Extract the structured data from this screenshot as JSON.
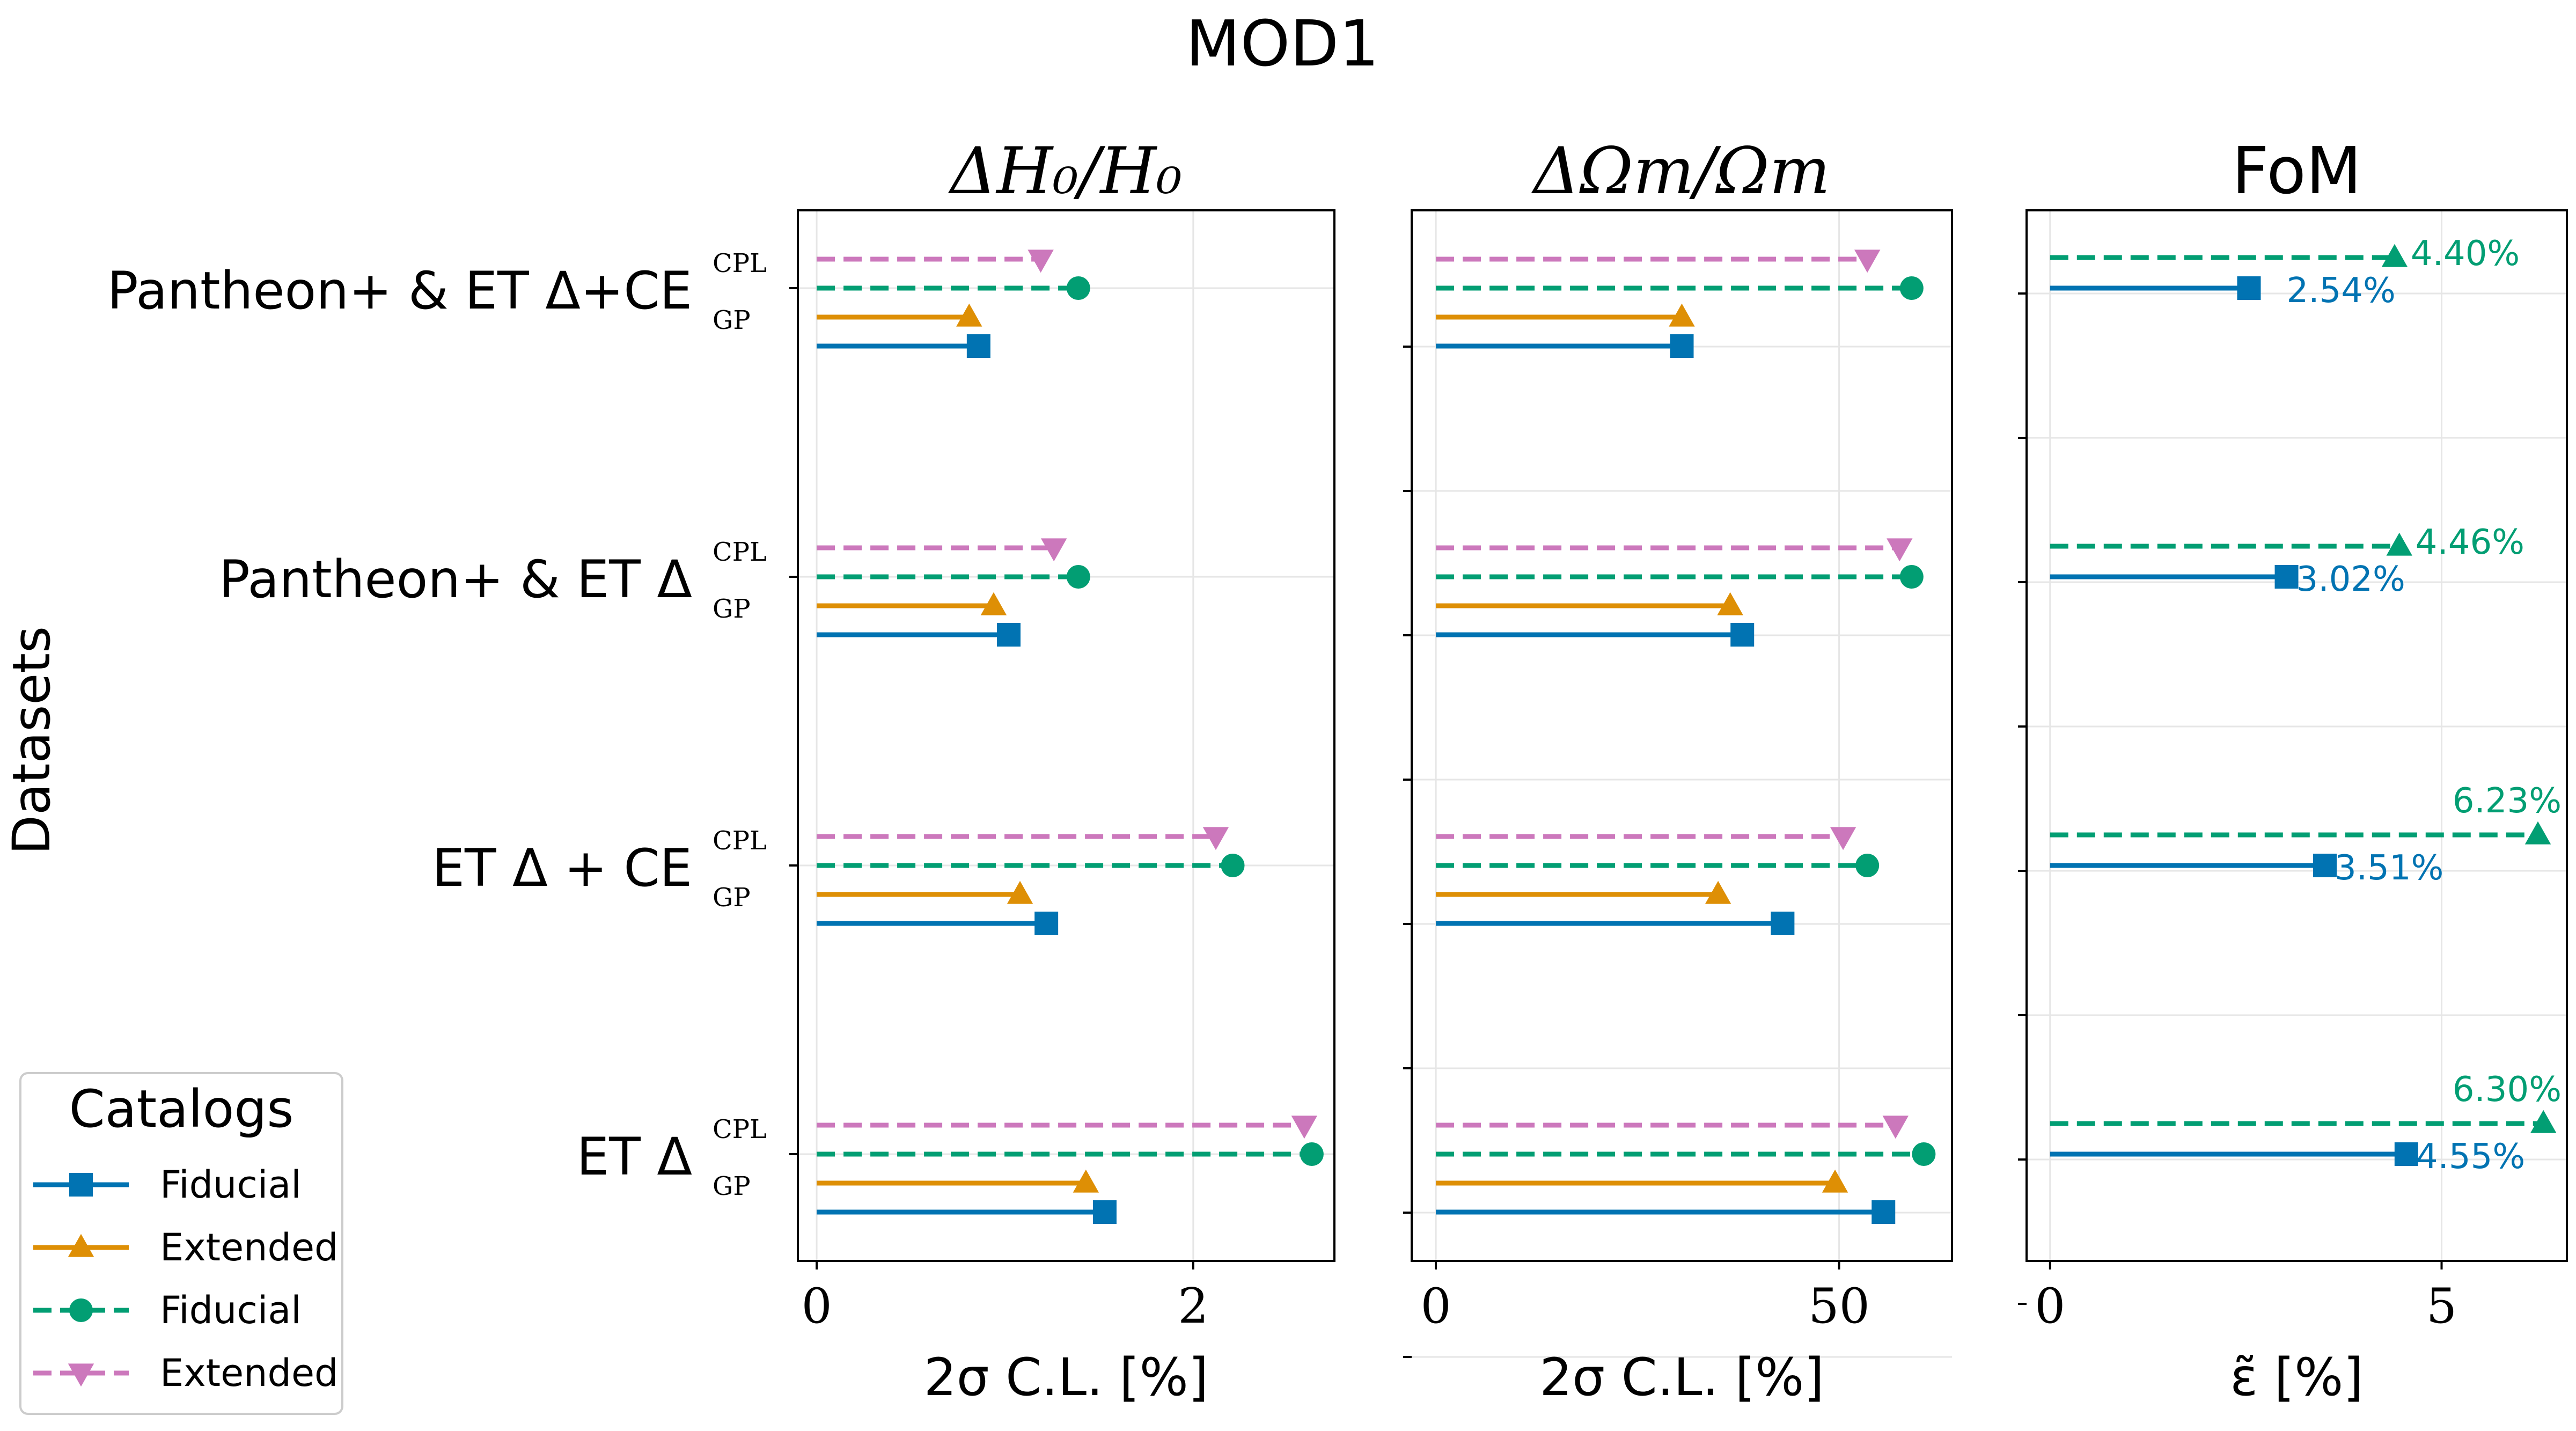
{
  "figure": {
    "suptitle": "MOD1",
    "ylabel": "Datasets",
    "legend_title": "Catalogs",
    "legend_placement": "bottom-left"
  },
  "chart_data": [
    {
      "type": "bar",
      "title": "ΔH₀/H₀",
      "xlabel": "2σ C.L. [%]",
      "xlim": [
        -0.1,
        2.75
      ],
      "xticks": [
        0,
        2
      ],
      "grid": true,
      "categories": [
        "Pantheon+ & ET Δ+CE",
        "Pantheon+ & ET Δ",
        "ET Δ + CE",
        "ET Δ"
      ],
      "category_sublabels": [
        "CPL",
        "GP"
      ],
      "series": [
        {
          "name": "Fiducial",
          "group": "GP",
          "color": "#0173b2",
          "style": "solid",
          "marker": "square",
          "values": [
            0.86,
            1.02,
            1.22,
            1.53
          ]
        },
        {
          "name": "Extended",
          "group": "GP",
          "color": "#de8f05",
          "style": "solid",
          "marker": "triangle-up",
          "values": [
            0.81,
            0.94,
            1.08,
            1.43
          ]
        },
        {
          "name": "Fiducial",
          "group": "CPL",
          "color": "#029e73",
          "style": "dashed",
          "marker": "circle",
          "values": [
            1.39,
            1.39,
            2.21,
            2.63
          ]
        },
        {
          "name": "Extended",
          "group": "CPL",
          "color": "#cc78bc",
          "style": "dashed",
          "marker": "triangle-down",
          "values": [
            1.19,
            1.26,
            2.12,
            2.59
          ]
        }
      ]
    },
    {
      "type": "bar",
      "title": "ΔΩm/Ωm",
      "xlabel": "2σ C.L. [%]",
      "xlim": [
        -3,
        64
      ],
      "xticks": [
        0,
        50
      ],
      "grid": true,
      "series": [
        {
          "name": "Fiducial",
          "group": "GP",
          "color": "#0173b2",
          "style": "solid",
          "marker": "square",
          "values": [
            30.5,
            38,
            43,
            55.5
          ]
        },
        {
          "name": "Extended",
          "group": "GP",
          "color": "#de8f05",
          "style": "solid",
          "marker": "triangle-up",
          "values": [
            30.5,
            36.5,
            35,
            49.5
          ]
        },
        {
          "name": "Fiducial",
          "group": "CPL",
          "color": "#029e73",
          "style": "dashed",
          "marker": "circle",
          "values": [
            59,
            59,
            53.5,
            60.5
          ]
        },
        {
          "name": "Extended",
          "group": "CPL",
          "color": "#cc78bc",
          "style": "dashed",
          "marker": "triangle-down",
          "values": [
            53.5,
            57.5,
            50.5,
            57
          ]
        }
      ]
    },
    {
      "type": "bar",
      "title": "FoM",
      "xlabel": "ε̃ [%]",
      "xlim": [
        -0.3,
        6.6
      ],
      "xticks": [
        0,
        5
      ],
      "grid": true,
      "series": [
        {
          "name": "Fiducial",
          "color": "#0173b2",
          "style": "solid",
          "marker": "square",
          "values": [
            2.54,
            3.02,
            3.51,
            4.55
          ],
          "labels": [
            "2.54%",
            "3.02%",
            "3.51%",
            "4.55%"
          ]
        },
        {
          "name": "Extended",
          "color": "#029e73",
          "style": "dashed",
          "marker": "triangle-up",
          "values": [
            4.4,
            4.46,
            6.23,
            6.3
          ],
          "labels": [
            "4.40%",
            "4.46%",
            "6.23%",
            "6.30%"
          ]
        }
      ]
    }
  ],
  "legend": [
    {
      "label": "Fiducial",
      "color": "#0173b2",
      "style": "solid",
      "marker": "square"
    },
    {
      "label": "Extended",
      "color": "#de8f05",
      "style": "solid",
      "marker": "triangle-up"
    },
    {
      "label": "Fiducial",
      "color": "#029e73",
      "style": "dashed",
      "marker": "circle"
    },
    {
      "label": "Extended",
      "color": "#cc78bc",
      "style": "dashed",
      "marker": "triangle-down"
    }
  ]
}
